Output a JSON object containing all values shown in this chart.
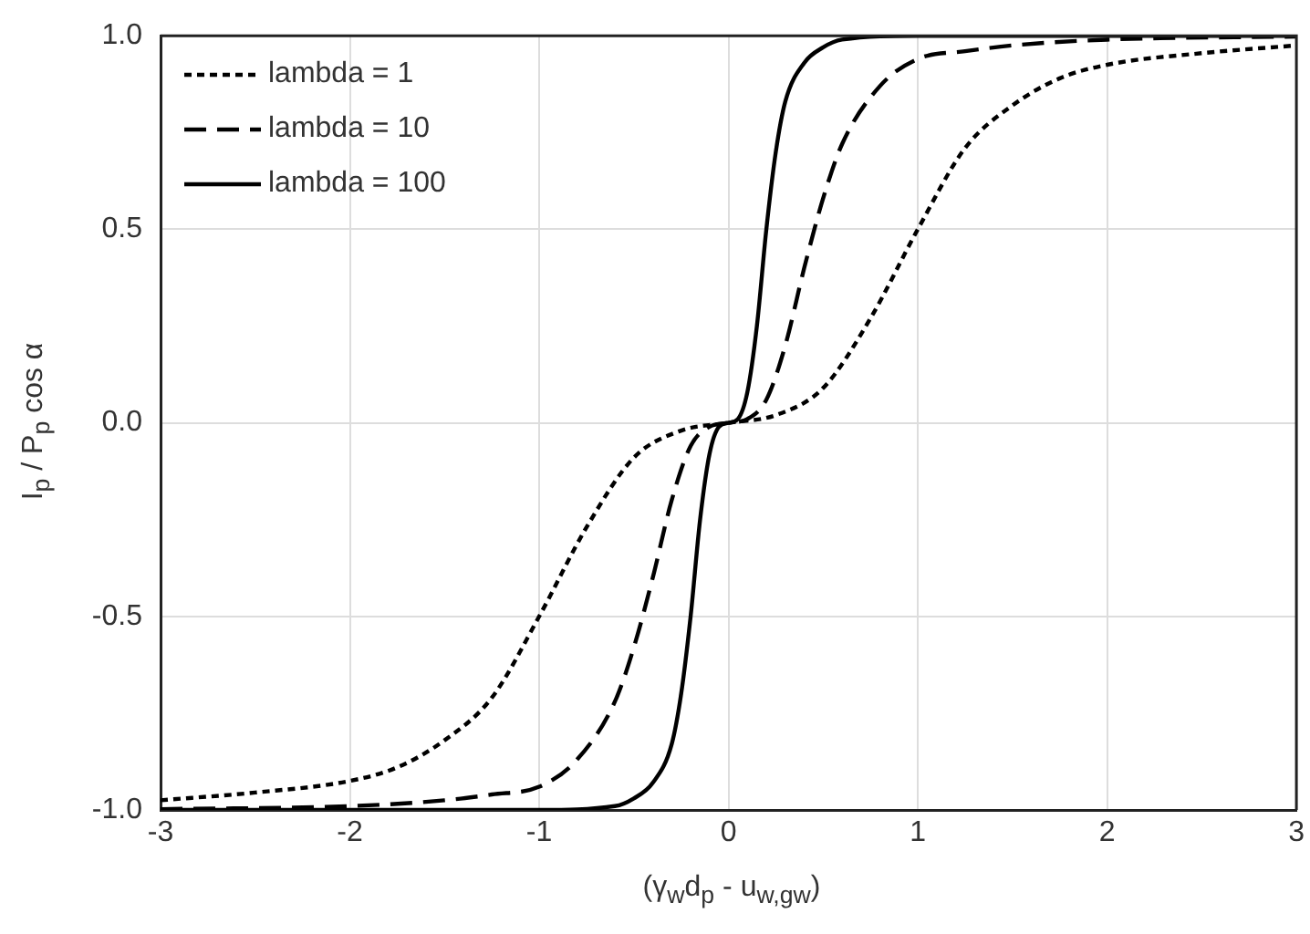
{
  "chart_data": {
    "type": "line",
    "xlabel": "(γ$_{w}$d$_{p}$ - u$_{w,gw}$)",
    "ylabel": "I$_{p}$ / P$_{p}$ cos α",
    "xlim": [
      -3,
      3
    ],
    "xticks": [
      -3,
      -2,
      -1,
      0,
      1,
      2,
      3
    ],
    "ylim": [
      -1,
      1
    ],
    "yticks": [
      {
        "value": -1,
        "label": "-1.0"
      },
      -0.5,
      {
        "value": 0,
        "label": "0.0"
      },
      0.5,
      {
        "value": 1,
        "label": "1.0"
      }
    ],
    "grid": true,
    "legend": "top left",
    "marker": "none",
    "series": [
      {
        "name": "lambda = 1",
        "color": "#000000",
        "line_style": "dotted",
        "x": [
          -3,
          -2.5,
          -2,
          -1.75,
          -1.5,
          -1.25,
          -1,
          -0.75,
          -0.5,
          -0.25,
          0,
          0.25,
          0.5,
          0.75,
          1,
          1.25,
          1.5,
          1.75,
          2,
          2.5,
          3
        ],
        "values": [
          -0.975,
          -0.955,
          -0.925,
          -0.89,
          -0.82,
          -0.71,
          -0.5,
          -0.27,
          -0.09,
          -0.02,
          0,
          0.02,
          0.09,
          0.27,
          0.5,
          0.71,
          0.82,
          0.89,
          0.925,
          0.955,
          0.975
        ]
      },
      {
        "name": "lambda = 10",
        "color": "#000000",
        "line_style": "dashed",
        "x": [
          -3,
          -2,
          -1.5,
          -1.25,
          -1,
          -0.8,
          -0.6,
          -0.5,
          -0.4,
          -0.3,
          -0.2,
          -0.1,
          0,
          0.1,
          0.2,
          0.3,
          0.4,
          0.5,
          0.6,
          0.8,
          1,
          1.25,
          1.5,
          2,
          3
        ],
        "values": [
          -0.998,
          -0.99,
          -0.975,
          -0.96,
          -0.94,
          -0.87,
          -0.72,
          -0.58,
          -0.4,
          -0.2,
          -0.06,
          -0.01,
          0,
          0.01,
          0.06,
          0.2,
          0.4,
          0.58,
          0.72,
          0.87,
          0.94,
          0.96,
          0.975,
          0.99,
          0.998
        ]
      },
      {
        "name": "lambda = 100",
        "color": "#000000",
        "line_style": "solid",
        "x": [
          -3,
          -1,
          -0.6,
          -0.5,
          -0.4,
          -0.3,
          -0.25,
          -0.2,
          -0.15,
          -0.1,
          -0.05,
          0,
          0.05,
          0.1,
          0.15,
          0.2,
          0.25,
          0.3,
          0.4,
          0.5,
          0.6,
          1,
          3
        ],
        "values": [
          -1,
          -1,
          -0.99,
          -0.97,
          -0.93,
          -0.83,
          -0.7,
          -0.5,
          -0.25,
          -0.08,
          -0.01,
          0,
          0.01,
          0.08,
          0.25,
          0.5,
          0.7,
          0.83,
          0.93,
          0.97,
          0.99,
          1,
          1
        ]
      }
    ]
  }
}
